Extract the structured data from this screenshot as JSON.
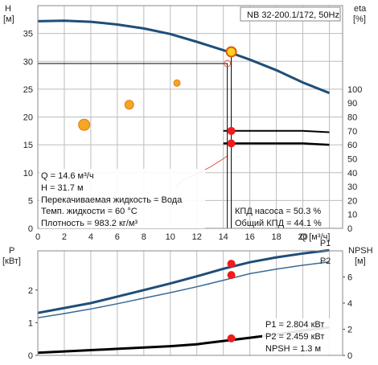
{
  "title": "NB 32-200.1/172, 50Hz",
  "colors": {
    "pump_curve": "#1f4e79",
    "pump_curve_light": "#3a6a99",
    "power_curve": "#000000",
    "efficiency_curve": "#e05a4a",
    "duty_point": "#ee1c1c",
    "point_fill": "#f5a623",
    "grid": "#bdbdbd"
  },
  "info": {
    "q": "Q = 14.6 м³/ч",
    "h": "H = 31.7 м",
    "liquid": "Перекачиваемая жидкость = Вода",
    "temp": "Темп. жидкости = 60 °C",
    "density": "Плотность = 983.2 кг/м³",
    "pump_eff": "КПД насоса = 50.3 %",
    "total_eff": "Общий КПД = 44.1 %",
    "p1": "P1 = 2.804 кВт",
    "p2": "P2 = 2.459 кВт",
    "npsh": "NPSH = 1.3 м"
  },
  "chart_data": [
    {
      "type": "line",
      "title": "NB 32-200.1/172, 50Hz",
      "xlabel": "Q [м³/ч]",
      "ylabel": "H [м]",
      "ylabel_right": "eta [%]",
      "xlim": [
        0,
        23
      ],
      "ylim": [
        0,
        40
      ],
      "ylim_right": [
        0,
        160
      ],
      "xticks": [
        0,
        2,
        4,
        6,
        8,
        10,
        12,
        14,
        16,
        18,
        20,
        22
      ],
      "xtick_labels": [
        "0",
        "2",
        "4",
        "6",
        "8",
        "10",
        "12",
        "14",
        "16",
        "18",
        "20",
        "Q [м³/ч]"
      ],
      "yticks": [
        0,
        5,
        10,
        15,
        20,
        25,
        30,
        35
      ],
      "yticks_right": [
        0,
        10,
        20,
        30,
        40,
        50,
        60,
        70,
        80,
        90,
        100
      ],
      "grid": true,
      "series": [
        {
          "axis": "left",
          "x": [
            0,
            2,
            4,
            6,
            8,
            10,
            12,
            14,
            16,
            18,
            20,
            22
          ],
          "y": [
            37.2,
            37.3,
            37.1,
            36.6,
            35.9,
            34.9,
            33.5,
            32.0,
            30.3,
            28.4,
            26.2,
            24.3
          ]
        },
        {
          "axis": "right",
          "x": [
            10.4,
            11,
            12,
            13,
            14,
            14.3
          ],
          "y": [
            30,
            35,
            39,
            44,
            50,
            52
          ]
        },
        {
          "axis": "right",
          "x": [
            14,
            16,
            18,
            20,
            22
          ],
          "y": [
            70,
            70,
            70,
            70,
            69
          ]
        },
        {
          "axis": "right",
          "x": [
            14,
            16,
            18,
            20,
            22
          ],
          "y": [
            61,
            61,
            61,
            61,
            60
          ]
        },
        {
          "axis": "left",
          "x": [
            3.5,
            6.9,
            10.5
          ],
          "y": [
            18.6,
            22.2,
            26.1
          ]
        }
      ],
      "duty_point": {
        "x": 14.6,
        "y": 31.7
      },
      "efficiency_points": [
        {
          "x": 14.6,
          "y": 70
        },
        {
          "x": 14.6,
          "y": 61
        }
      ]
    },
    {
      "type": "line",
      "xlabel": "",
      "ylabel": "P [кВт]",
      "ylabel_right": "NPSH [м]",
      "xlim": [
        0,
        23
      ],
      "ylim": [
        0,
        3.2
      ],
      "ylim_right": [
        0,
        8
      ],
      "yticks": [
        0,
        1,
        2
      ],
      "yticks_right": [
        0,
        2,
        4,
        6
      ],
      "grid": true,
      "series": [
        {
          "name": "P1",
          "axis": "left",
          "x": [
            0,
            2,
            4,
            6,
            8,
            10,
            12,
            14,
            16,
            18,
            20,
            22
          ],
          "y": [
            1.3,
            1.45,
            1.6,
            1.8,
            2.0,
            2.2,
            2.42,
            2.65,
            2.85,
            3.0,
            3.12,
            3.22
          ]
        },
        {
          "name": "P2",
          "axis": "left",
          "x": [
            0,
            2,
            4,
            6,
            8,
            10,
            12,
            14,
            16,
            18,
            20,
            22
          ],
          "y": [
            1.15,
            1.28,
            1.42,
            1.58,
            1.75,
            1.92,
            2.1,
            2.3,
            2.5,
            2.64,
            2.76,
            2.86
          ]
        },
        {
          "name": "NPSH",
          "axis": "right",
          "x": [
            0,
            2,
            4,
            6,
            8,
            10,
            12,
            14,
            16,
            18,
            20,
            22
          ],
          "y": [
            0.2,
            0.3,
            0.4,
            0.5,
            0.6,
            0.7,
            0.85,
            1.1,
            1.35,
            1.6,
            1.9,
            2.15
          ]
        }
      ],
      "series_labels": [
        "P1",
        "P2"
      ],
      "duty_points": [
        {
          "x": 14.6,
          "y": 2.804
        },
        {
          "x": 14.6,
          "y": 2.459
        },
        {
          "x": 14.6,
          "y_right": 1.3
        }
      ]
    }
  ]
}
